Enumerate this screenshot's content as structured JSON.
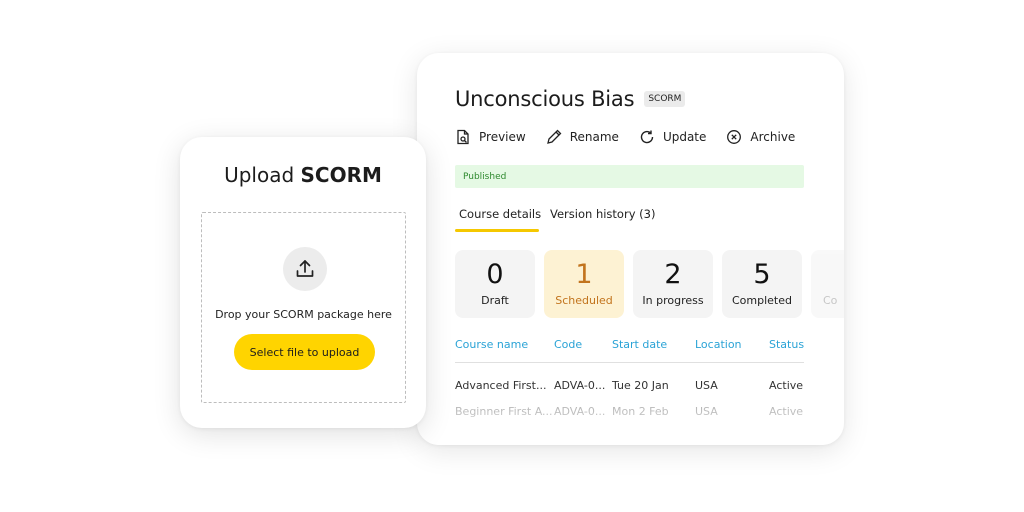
{
  "course": {
    "title": "Unconscious Bias",
    "tag": "SCORM",
    "actions": [
      {
        "label": "Preview",
        "icon": "preview-icon"
      },
      {
        "label": "Rename",
        "icon": "pencil-icon"
      },
      {
        "label": "Update",
        "icon": "refresh-icon"
      },
      {
        "label": "Archive",
        "icon": "close-circle-icon"
      }
    ],
    "status_banner": "Published",
    "tabs": [
      {
        "label": "Course details",
        "active": true
      },
      {
        "label": "Version history (3)",
        "active": false
      }
    ],
    "stats": [
      {
        "value": "0",
        "label": "Draft"
      },
      {
        "value": "1",
        "label": "Scheduled"
      },
      {
        "value": "2",
        "label": "In progress"
      },
      {
        "value": "5",
        "label": "Completed"
      },
      {
        "value": "",
        "label": "Co"
      }
    ],
    "table": {
      "headers": [
        "Course name",
        "Code",
        "Start date",
        "Location",
        "Status"
      ],
      "rows": [
        [
          "Advanced First...",
          "ADVA-0...",
          "Tue 20 Jan",
          "USA",
          "Active"
        ],
        [
          "Beginner First A...",
          "ADVA-0...",
          "Mon 2 Feb",
          "USA",
          "Active"
        ]
      ]
    }
  },
  "upload": {
    "title_prefix": "Upload",
    "title_strong": "SCORM",
    "icon": "upload-icon",
    "drop_text": "Drop your SCORM package here",
    "button_label": "Select file to upload"
  },
  "colors": {
    "accent_yellow": "#ffd400",
    "link_blue": "#2aa3d6",
    "published_bg": "#e5f9e4",
    "published_text": "#2f8a2f",
    "scheduled_bg": "#fdf2d3",
    "scheduled_text": "#c2741d"
  }
}
